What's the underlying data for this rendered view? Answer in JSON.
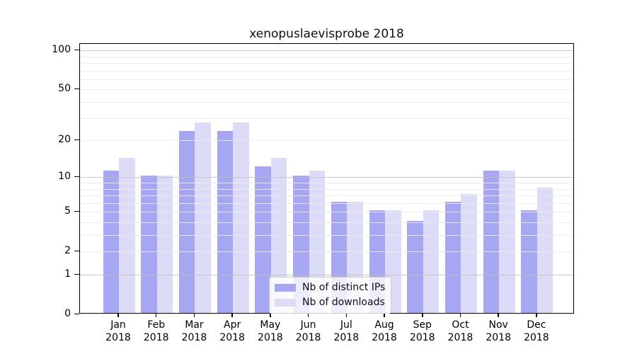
{
  "chart_data": {
    "type": "bar",
    "title": "xenopuslaevisprobe 2018",
    "categories": [
      "Jan",
      "Feb",
      "Mar",
      "Apr",
      "May",
      "Jun",
      "Jul",
      "Aug",
      "Sep",
      "Oct",
      "Nov",
      "Dec"
    ],
    "year": "2018",
    "series": [
      {
        "name": "Nb of distinct IPs",
        "color": "#a6a6f2",
        "values": [
          11,
          10,
          23,
          23,
          12,
          10,
          6,
          5,
          4,
          6,
          11,
          5
        ]
      },
      {
        "name": "Nb of downloads",
        "color": "#dcdcf9",
        "values": [
          14,
          10,
          27,
          27,
          14,
          11,
          6,
          5,
          5,
          7,
          11,
          8
        ]
      }
    ],
    "yscale": "log1p",
    "ylim": [
      0,
      100
    ],
    "ytick_labels": [
      100,
      50,
      20,
      10,
      5,
      2,
      1,
      0
    ],
    "grid_major": [
      1,
      10,
      100
    ],
    "grid_minor": [
      2,
      3,
      4,
      5,
      6,
      7,
      8,
      9,
      20,
      30,
      40,
      50,
      60,
      70,
      80,
      90
    ],
    "legend": {
      "position": "lower center",
      "entries": [
        "Nb of distinct IPs",
        "Nb of downloads"
      ]
    },
    "colors": {
      "bar_distinct_ips": "#a6a6f2",
      "bar_downloads": "#dcdcf9",
      "grid_major": "#c8c8c8",
      "grid_minor": "#ebebeb",
      "axis": "#000000"
    }
  }
}
